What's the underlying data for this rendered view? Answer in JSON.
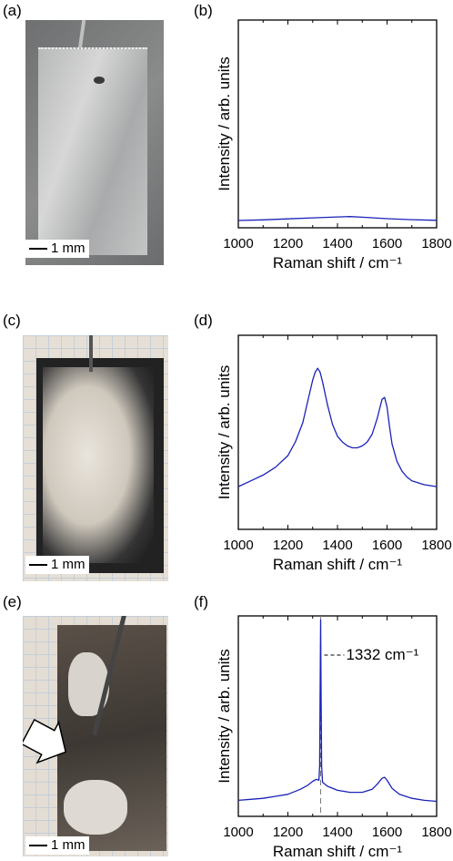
{
  "panels": {
    "a": {
      "label": "(a)",
      "scale": "1 mm"
    },
    "b": {
      "label": "(b)"
    },
    "c": {
      "label": "(c)",
      "scale": "1 mm"
    },
    "d": {
      "label": "(d)"
    },
    "e": {
      "label": "(e)",
      "scale": "1 mm"
    },
    "f": {
      "label": "(f)"
    }
  },
  "colors": {
    "series": "#1a22b8",
    "grid_paper": "#b9c6d3"
  },
  "chart_data": [
    {
      "id": "b",
      "type": "line",
      "xlabel": "Raman shift / cm⁻¹",
      "ylabel": "Intensity / arb. units",
      "xlim": [
        1000,
        1800
      ],
      "ylim": [
        0,
        100
      ],
      "xticks": [
        "1000",
        "1200",
        "1400",
        "1600",
        "1800"
      ],
      "series": [
        {
          "x": [
            1000,
            1100,
            1200,
            1300,
            1400,
            1450,
            1500,
            1600,
            1700,
            1800
          ],
          "y": [
            3.5,
            3.8,
            4.3,
            4.8,
            5.2,
            5.4,
            5.1,
            4.4,
            3.9,
            3.6
          ]
        }
      ]
    },
    {
      "id": "d",
      "type": "line",
      "xlabel": "Raman shift / cm⁻¹",
      "ylabel": "Intensity / arb. units",
      "xlim": [
        1000,
        1800
      ],
      "ylim": [
        0,
        100
      ],
      "xticks": [
        "1000",
        "1200",
        "1400",
        "1600",
        "1800"
      ],
      "series": [
        {
          "x": [
            1000,
            1050,
            1100,
            1150,
            1200,
            1230,
            1260,
            1280,
            1300,
            1310,
            1320,
            1330,
            1340,
            1360,
            1380,
            1400,
            1420,
            1440,
            1460,
            1480,
            1500,
            1520,
            1540,
            1560,
            1570,
            1580,
            1590,
            1600,
            1610,
            1620,
            1640,
            1660,
            1680,
            1700,
            1750,
            1800
          ],
          "y": [
            22,
            25,
            28,
            32,
            38,
            45,
            55,
            66,
            77,
            81,
            83,
            81,
            76,
            64,
            54,
            48,
            45,
            43,
            42,
            42,
            43,
            45,
            49,
            57,
            62,
            67,
            68,
            63,
            53,
            44,
            35,
            30,
            27,
            25,
            23,
            22
          ]
        }
      ]
    },
    {
      "id": "f",
      "type": "line",
      "xlabel": "Raman shift / cm⁻¹",
      "ylabel": "Intensity / arb. units",
      "xlim": [
        1000,
        1800
      ],
      "ylim": [
        0,
        100
      ],
      "xticks": [
        "1000",
        "1200",
        "1400",
        "1600",
        "1800"
      ],
      "series": [
        {
          "x": [
            1000,
            1050,
            1100,
            1150,
            1200,
            1250,
            1280,
            1300,
            1315,
            1325,
            1328,
            1330,
            1332,
            1334,
            1336,
            1340,
            1360,
            1400,
            1450,
            1500,
            1540,
            1560,
            1580,
            1590,
            1600,
            1620,
            1650,
            1700,
            1750,
            1800
          ],
          "y": [
            8,
            8.5,
            9,
            10,
            11,
            13.5,
            15.5,
            17.5,
            18.5,
            18,
            25,
            60,
            98,
            60,
            25,
            17,
            15,
            13,
            12,
            12,
            13.5,
            16,
            19,
            19.5,
            18,
            14,
            11,
            9,
            8,
            7.5
          ]
        }
      ],
      "annotations": [
        {
          "x": 1332,
          "text": "1332 cm⁻¹",
          "dashed_vertical": true
        }
      ]
    }
  ]
}
